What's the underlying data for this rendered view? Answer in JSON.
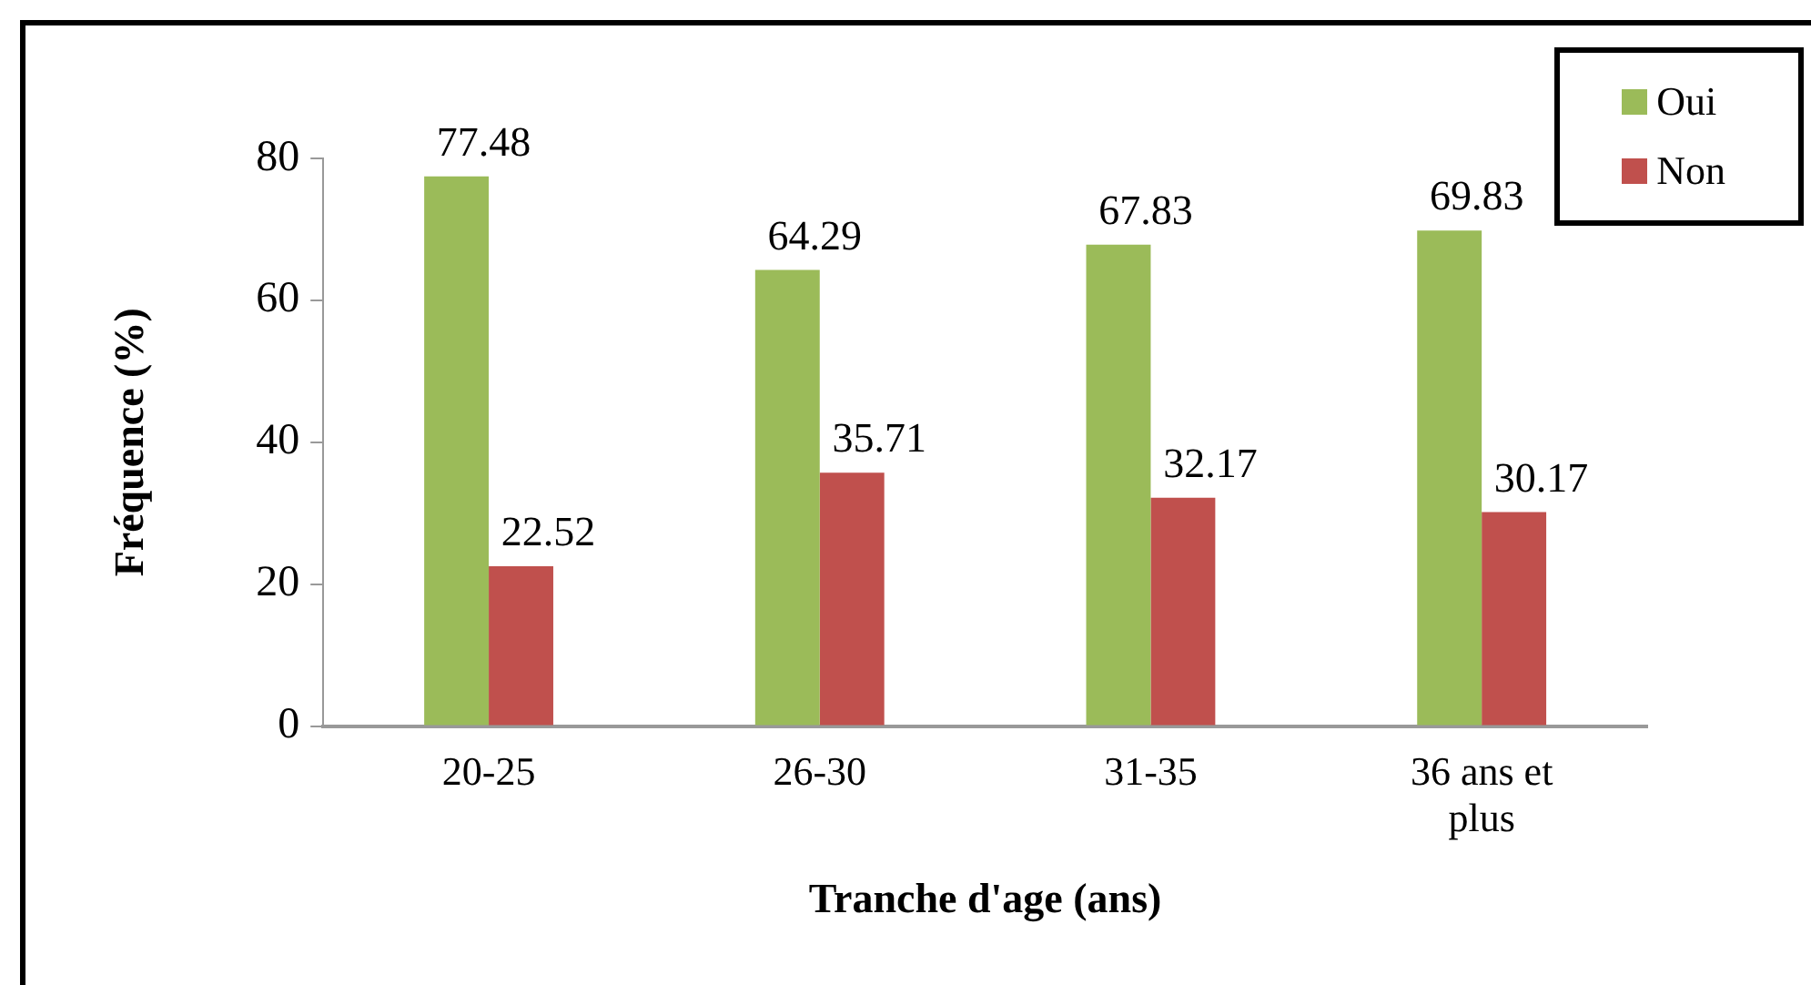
{
  "chart_data": {
    "type": "bar",
    "xlabel": "Tranche d'age (ans)",
    "ylabel": "Fréquence (%)",
    "categories": [
      "20-25",
      "26-30",
      "31-35",
      "36 ans et plus"
    ],
    "series": [
      {
        "name": "Oui",
        "color": "#9bbb59",
        "values": [
          77.48,
          64.29,
          67.83,
          69.83
        ]
      },
      {
        "name": "Non",
        "color": "#c0504d",
        "values": [
          22.52,
          35.71,
          32.17,
          30.17
        ]
      }
    ],
    "ylim": [
      0,
      80
    ],
    "yticks": [
      0,
      20,
      40,
      60,
      80
    ],
    "grid": false,
    "legend": "top right",
    "data_labels": true
  }
}
